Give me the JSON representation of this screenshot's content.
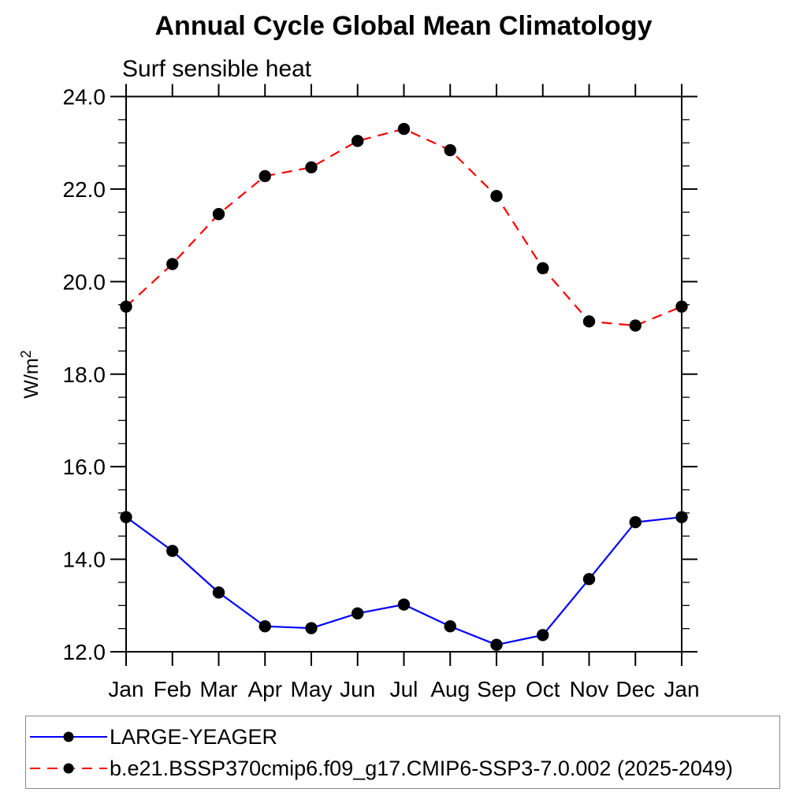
{
  "chart_data": {
    "type": "line",
    "title": "Annual Cycle Global Mean Climatology",
    "subtitle": "Surf sensible heat",
    "ylabel": {
      "base": "W/m",
      "exponent": "2"
    },
    "categories": [
      "Jan",
      "Feb",
      "Mar",
      "Apr",
      "May",
      "Jun",
      "Jul",
      "Aug",
      "Sep",
      "Oct",
      "Nov",
      "Dec",
      "Jan"
    ],
    "ylim": [
      12.0,
      24.0
    ],
    "ytick_major_step": 2.0,
    "ytick_minor_step": 0.5,
    "ytick_labels": [
      "12.0",
      "14.0",
      "16.0",
      "18.0",
      "20.0",
      "22.0",
      "24.0"
    ],
    "grid": false,
    "legend_position": "bottom-left-box",
    "axis_color": "#000000",
    "legend_border_color": "#888888",
    "series": [
      {
        "name": "LARGE-YEAGER",
        "color": "#0000ff",
        "style": "solid",
        "marker": "filled-circle",
        "marker_color": "#000000",
        "values": [
          14.91,
          14.18,
          13.28,
          12.55,
          12.51,
          12.83,
          13.02,
          12.55,
          12.15,
          12.36,
          13.57,
          14.8,
          14.91
        ]
      },
      {
        "name": "b.e21.BSSP370cmip6.f09_g17.CMIP6-SSP3-7.0.002 (2025-2049)",
        "color": "#ff0000",
        "style": "dashed",
        "marker": "filled-circle",
        "marker_color": "#000000",
        "values": [
          19.46,
          20.38,
          21.46,
          22.28,
          22.47,
          23.04,
          23.3,
          22.84,
          21.85,
          20.29,
          19.14,
          19.05,
          19.46
        ]
      }
    ]
  }
}
